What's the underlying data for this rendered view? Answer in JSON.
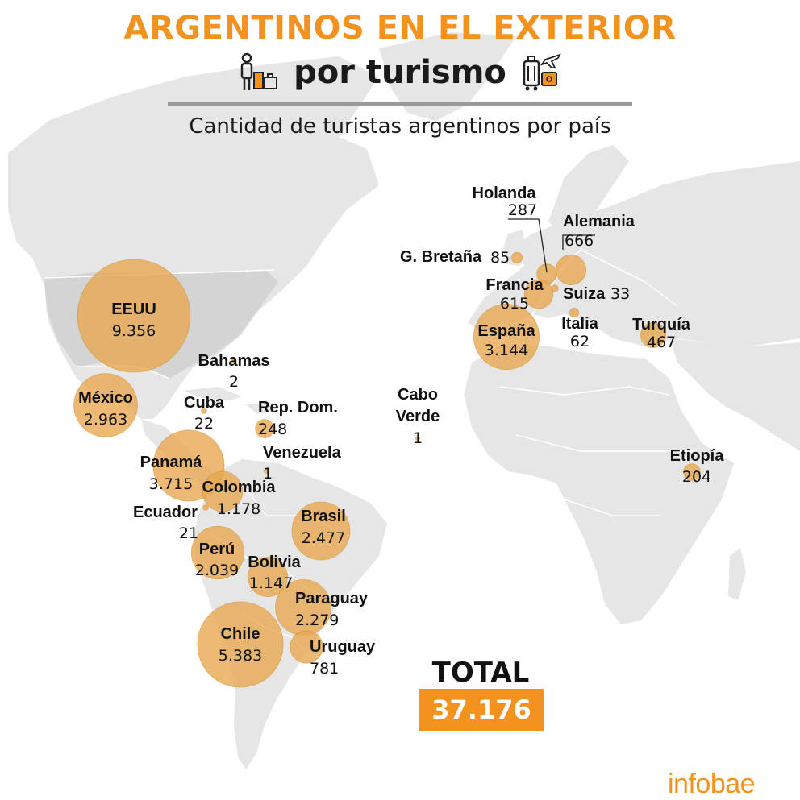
{
  "header": {
    "title": "ARGENTINOS EN EL EXTERIOR",
    "subtitle": "por turismo",
    "caption": "Cantidad de turistas argentinos por país"
  },
  "colors": {
    "accent": "#f4921f",
    "bubble": "#e7a64e",
    "land": "#e6e6e6"
  },
  "icons": {
    "left": "traveler-with-luggage-icon",
    "right": "suitcase-airplane-icon"
  },
  "countries": [
    {
      "name": "EEUU",
      "value": "9.356"
    },
    {
      "name": "México",
      "value": "2.963"
    },
    {
      "name": "Bahamas",
      "value": "2"
    },
    {
      "name": "Cuba",
      "value": "22"
    },
    {
      "name": "Rep. Dom.",
      "value": "248"
    },
    {
      "name": "Venezuela",
      "value": "1"
    },
    {
      "name": "Panamá",
      "value": "3.715"
    },
    {
      "name": "Colombia",
      "value": "1.178"
    },
    {
      "name": "Ecuador",
      "value": "21"
    },
    {
      "name": "Brasil",
      "value": "2.477"
    },
    {
      "name": "Perú",
      "value": "2.039"
    },
    {
      "name": "Bolivia",
      "value": "1.147"
    },
    {
      "name": "Paraguay",
      "value": "2.279"
    },
    {
      "name": "Chile",
      "value": "5.383"
    },
    {
      "name": "Uruguay",
      "value": "781"
    },
    {
      "name": "Cabo Verde",
      "value": "1"
    },
    {
      "name": "Holanda",
      "value": "287"
    },
    {
      "name": "Alemania",
      "value": "666"
    },
    {
      "name": "G. Bretaña",
      "value": "85"
    },
    {
      "name": "Francia",
      "value": "615"
    },
    {
      "name": "Suiza",
      "value": "33"
    },
    {
      "name": "España",
      "value": "3.144"
    },
    {
      "name": "Italia",
      "value": "62"
    },
    {
      "name": "Turquía",
      "value": "467"
    },
    {
      "name": "Etiopía",
      "value": "204"
    }
  ],
  "cabo_verde_lines": [
    "Cabo",
    "Verde"
  ],
  "total": {
    "label": "TOTAL",
    "value": "37.176"
  },
  "logo": "infobae"
}
